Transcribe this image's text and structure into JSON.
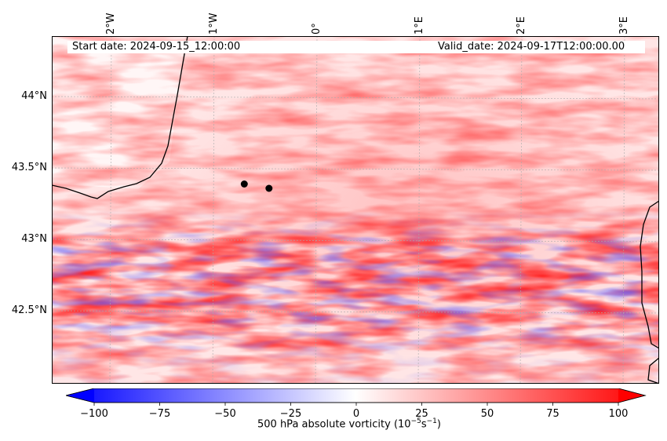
{
  "map": {
    "start_date": "Start date: 2024-09-15_12:00:00",
    "valid_date": "Valid_date: 2024-09-17T12:00:00.00",
    "lon_ticks": [
      "2°W",
      "1°W",
      "0°",
      "1°E",
      "2°E",
      "3°E"
    ],
    "lat_ticks": [
      "44°N",
      "43.5°N",
      "43°N",
      "42.5°N"
    ],
    "points": [
      {
        "lon": -0.63,
        "lat": 43.39
      },
      {
        "lon": -0.39,
        "lat": 43.36
      }
    ]
  },
  "colorbar": {
    "ticks": [
      "−100",
      "−75",
      "−50",
      "−25",
      "0",
      "25",
      "50",
      "75",
      "100"
    ],
    "label": "500 hPa absolute vorticity (10",
    "label_exp": "−5",
    "label_unit": "s",
    "label_unit_exp": "−1",
    "label_close": ")",
    "min_color": "#0000ff",
    "mid_color": "#ffffff",
    "max_color": "#ff0000"
  }
}
